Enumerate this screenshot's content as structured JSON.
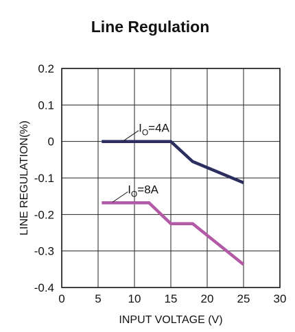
{
  "chart_data": {
    "type": "line",
    "title": "Line Regulation",
    "xlabel": "INPUT VOLTAGE (V)",
    "ylabel": "LINE REGULATION(%)",
    "xlim": [
      0,
      30
    ],
    "ylim": [
      -0.4,
      0.2
    ],
    "xticks": [
      0,
      5,
      10,
      15,
      20,
      25,
      30
    ],
    "yticks": [
      0.2,
      0.1,
      0,
      -0.1,
      -0.2,
      -0.3,
      -0.4
    ],
    "xtick_labels": [
      "0",
      "5",
      "10",
      "15",
      "20",
      "25",
      "30"
    ],
    "ytick_labels": [
      "0.2",
      "0.1",
      "0",
      "-0.1",
      "-0.2",
      "-0.3",
      "-0.4"
    ],
    "grid": true,
    "series": [
      {
        "color": "#2b2e5e",
        "points": [
          [
            5.5,
            0.0
          ],
          [
            15,
            0.0
          ],
          [
            18,
            -0.055
          ],
          [
            25,
            -0.113
          ]
        ],
        "annotation": {
          "main": "I",
          "sub": "O",
          "rest": "=4A",
          "at": [
            8.5,
            0.0
          ]
        }
      },
      {
        "color": "#b25aa6",
        "points": [
          [
            5.5,
            -0.168
          ],
          [
            12,
            -0.168
          ],
          [
            15,
            -0.225
          ],
          [
            18,
            -0.225
          ],
          [
            25,
            -0.337
          ]
        ],
        "annotation": {
          "main": "I",
          "sub": "O",
          "rest": "=8A",
          "at": [
            7.0,
            -0.168
          ]
        }
      }
    ]
  }
}
